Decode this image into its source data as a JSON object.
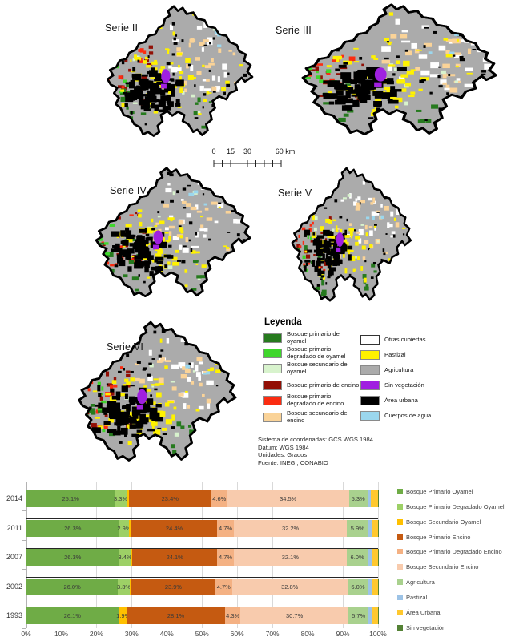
{
  "maps": {
    "series": [
      {
        "label": "Serie II"
      },
      {
        "label": "Serie III"
      },
      {
        "label": "Serie IV"
      },
      {
        "label": "Serie V"
      },
      {
        "label": "Serie VI"
      }
    ],
    "scale_bar": {
      "labels": [
        "0",
        "15",
        "30",
        "60 km"
      ]
    },
    "legend": {
      "title": "Leyenda",
      "left_items": [
        {
          "label": "Bosque primario de oyamel",
          "color": "#267a1e"
        },
        {
          "label": "Bosque primario degradado de oyamel",
          "color": "#3fd62c"
        },
        {
          "label": "Bosque secundario de oyamel",
          "color": "#d8f3cd"
        },
        {
          "label": "Bosque primario de encino",
          "color": "#920f05"
        },
        {
          "label": "Bosque primario degradado de encino",
          "color": "#fb2c11"
        },
        {
          "label": "Bosque secundario de encino",
          "color": "#fad398"
        }
      ],
      "right_items": [
        {
          "label": "Otras cubiertas",
          "color": "#ffffff"
        },
        {
          "label": "Pastizal",
          "color": "#fff200"
        },
        {
          "label": "Agricultura",
          "color": "#ababab"
        },
        {
          "label": "Sin vegetación",
          "color": "#a020e0"
        },
        {
          "label": "Área urbana",
          "color": "#000000"
        },
        {
          "label": "Cuerpos de agua",
          "color": "#9bd7ee"
        }
      ]
    },
    "footer_lines": [
      "Sistema de coordenadas: GCS WGS 1984",
      "Datum: WGS 1984",
      "Unidades: Grados",
      "Fuente: INEGI, CONABIO"
    ]
  },
  "chart_data": {
    "type": "bar",
    "stacked": true,
    "horizontal": true,
    "categories": [
      "2014",
      "2011",
      "2007",
      "2002",
      "1993"
    ],
    "x_ticks": [
      "0%",
      "10%",
      "20%",
      "30%",
      "40%",
      "50%",
      "60%",
      "70%",
      "80%",
      "90%",
      "100%"
    ],
    "xlim": [
      0,
      100
    ],
    "grid": true,
    "legend_position": "right",
    "series": [
      {
        "name": "Bosque Primario Oyamel",
        "color": "#6fac46",
        "values": [
          25.1,
          26.3,
          26.3,
          26.0,
          26.1
        ],
        "labels": [
          "25.1%",
          "26.3%",
          "26.3%",
          "26.0%",
          "26.1%"
        ]
      },
      {
        "name": "Bosque Primario Degradado Oyamel",
        "color": "#9dd066",
        "values": [
          3.3,
          2.9,
          3.4,
          3.3,
          0.4
        ],
        "labels": [
          "3.3%",
          "2.9%",
          "3.4%",
          "3.3%",
          ""
        ]
      },
      {
        "name": "Bosque Secundario Oyamel",
        "color": "#ffc000",
        "values": [
          0.7,
          0.6,
          0.4,
          0.5,
          1.9
        ],
        "labels": [
          "",
          "",
          "",
          "",
          "1.9%"
        ]
      },
      {
        "name": "Bosque Primario Encino",
        "color": "#c55a11",
        "values": [
          23.4,
          24.4,
          24.1,
          23.9,
          28.1
        ],
        "labels": [
          "23.4%",
          "24.4%",
          "24.1%",
          "23.9%",
          "28.1%"
        ]
      },
      {
        "name": "Bosque Primario Degradado Encino",
        "color": "#f4b183",
        "values": [
          4.6,
          4.7,
          4.7,
          4.7,
          4.3
        ],
        "labels": [
          "4.6%",
          "4.7%",
          "4.7%",
          "4.7%",
          "4.3%"
        ]
      },
      {
        "name": "Bosque Secundario Encino",
        "color": "#f8cbad",
        "values": [
          34.5,
          32.2,
          32.1,
          32.8,
          30.7
        ],
        "labels": [
          "34.5%",
          "32.2%",
          "32.1%",
          "32.8%",
          "30.7%"
        ]
      },
      {
        "name": "Agricultura",
        "color": "#a9d18e",
        "values": [
          5.3,
          5.9,
          6.0,
          6.0,
          5.7
        ],
        "labels": [
          "5.3%",
          "5.9%",
          "6.0%",
          "6.0%",
          "5.7%"
        ]
      },
      {
        "name": "Pastizal",
        "color": "#9dc3e6",
        "values": [
          1.0,
          1.0,
          1.0,
          1.0,
          1.0
        ],
        "labels": [
          "",
          "",
          "",
          "",
          ""
        ]
      },
      {
        "name": "Área Urbana",
        "color": "#ffc82e",
        "values": [
          2.0,
          1.9,
          1.9,
          1.7,
          1.7
        ],
        "labels": [
          "",
          "",
          "",
          "",
          ""
        ]
      },
      {
        "name": "Sin vegetación",
        "color": "#548235",
        "values": [
          0.1,
          0.1,
          0.1,
          0.1,
          0.1
        ],
        "labels": [
          "",
          "",
          "",
          "",
          ""
        ]
      }
    ]
  }
}
